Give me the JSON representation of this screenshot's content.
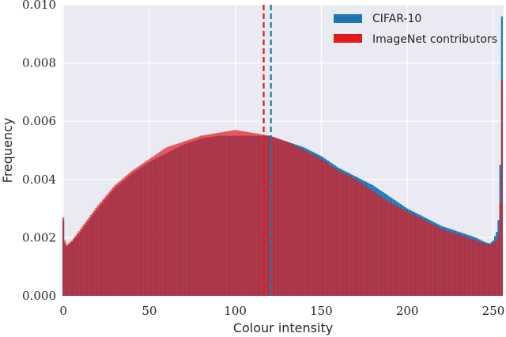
{
  "chart_data": {
    "type": "bar",
    "title": "",
    "xlabel": "Colour intensity",
    "ylabel": "Frequency",
    "xlim": [
      -0.5,
      256
    ],
    "ylim": [
      0,
      0.01
    ],
    "xticks": [
      0,
      50,
      100,
      150,
      200,
      250
    ],
    "yticks": [
      "0.000",
      "0.002",
      "0.004",
      "0.006",
      "0.008",
      "0.010"
    ],
    "grid": true,
    "legend_position": "top-right",
    "colors": {
      "background": "#eaeaf2",
      "grid": "#ffffff",
      "cifar": "#1f77b4",
      "imagenet": "#e31a1c",
      "overlap": "#8a4a7e"
    },
    "series": [
      {
        "name": "CIFAR-10",
        "mean": 120.7,
        "profile": [
          [
            0,
            0.0026
          ],
          [
            1,
            0.0018
          ],
          [
            2,
            0.0017
          ],
          [
            5,
            0.00185
          ],
          [
            10,
            0.0022
          ],
          [
            20,
            0.003
          ],
          [
            30,
            0.0037
          ],
          [
            40,
            0.0042
          ],
          [
            50,
            0.0046
          ],
          [
            60,
            0.0049
          ],
          [
            70,
            0.0052
          ],
          [
            80,
            0.0054
          ],
          [
            90,
            0.0055
          ],
          [
            100,
            0.0055
          ],
          [
            110,
            0.0055
          ],
          [
            120,
            0.0055
          ],
          [
            130,
            0.0053
          ],
          [
            140,
            0.0051
          ],
          [
            150,
            0.0048
          ],
          [
            160,
            0.0044
          ],
          [
            170,
            0.0041
          ],
          [
            180,
            0.0038
          ],
          [
            190,
            0.0034
          ],
          [
            200,
            0.003
          ],
          [
            210,
            0.0027
          ],
          [
            220,
            0.0024
          ],
          [
            230,
            0.0022
          ],
          [
            240,
            0.002
          ],
          [
            245,
            0.00185
          ],
          [
            248,
            0.0018
          ],
          [
            250,
            0.0019
          ],
          [
            252,
            0.0022
          ],
          [
            253,
            0.0026
          ],
          [
            254,
            0.0045
          ],
          [
            255,
            0.0096
          ]
        ]
      },
      {
        "name": "ImageNet contributors",
        "mean": 116.5,
        "profile": [
          [
            0,
            0.0027
          ],
          [
            1,
            0.0019
          ],
          [
            2,
            0.00175
          ],
          [
            5,
            0.0019
          ],
          [
            10,
            0.0023
          ],
          [
            20,
            0.0031
          ],
          [
            30,
            0.0038
          ],
          [
            40,
            0.0043
          ],
          [
            50,
            0.0047
          ],
          [
            60,
            0.0051
          ],
          [
            70,
            0.0053
          ],
          [
            80,
            0.0055
          ],
          [
            90,
            0.0056
          ],
          [
            100,
            0.0057
          ],
          [
            110,
            0.0056
          ],
          [
            120,
            0.0055
          ],
          [
            130,
            0.0053
          ],
          [
            140,
            0.005
          ],
          [
            150,
            0.0047
          ],
          [
            160,
            0.0043
          ],
          [
            170,
            0.004
          ],
          [
            180,
            0.0036
          ],
          [
            190,
            0.0032
          ],
          [
            200,
            0.0029
          ],
          [
            210,
            0.0026
          ],
          [
            220,
            0.0023
          ],
          [
            230,
            0.0021
          ],
          [
            240,
            0.0019
          ],
          [
            245,
            0.0018
          ],
          [
            248,
            0.00175
          ],
          [
            250,
            0.0018
          ],
          [
            252,
            0.0019
          ],
          [
            253,
            0.0021
          ],
          [
            254,
            0.0032
          ],
          [
            255,
            0.0074
          ]
        ]
      }
    ]
  }
}
